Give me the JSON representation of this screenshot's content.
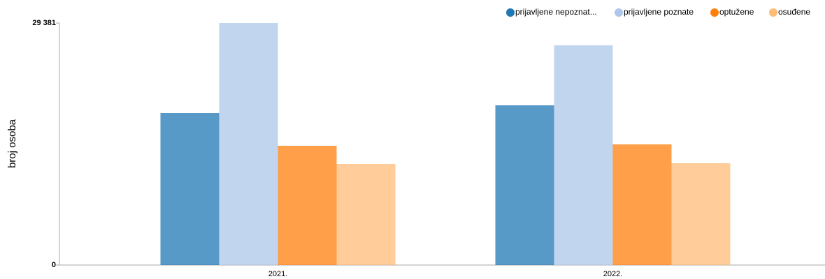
{
  "chart_data": {
    "type": "bar",
    "y_label": "broj osoba",
    "categories": [
      "2021.",
      "2022."
    ],
    "series": [
      {
        "name": "prijavljene nepoznat...",
        "color": "#1f77b4",
        "values": [
          18459,
          19390
        ]
      },
      {
        "name": "prijavljene poznate",
        "color": "#aec7e8",
        "values": [
          29381,
          26672
        ]
      },
      {
        "name": "optužene",
        "color": "#ff7f0e",
        "values": [
          14479,
          14648
        ]
      },
      {
        "name": "osuđene",
        "color": "#ffbb78",
        "values": [
          12277,
          12362
        ]
      }
    ],
    "ylim": [
      0,
      29381
    ],
    "yticks": [
      0,
      {
        "value": 29381,
        "label": "29 381"
      }
    ],
    "legend": "top-right"
  }
}
